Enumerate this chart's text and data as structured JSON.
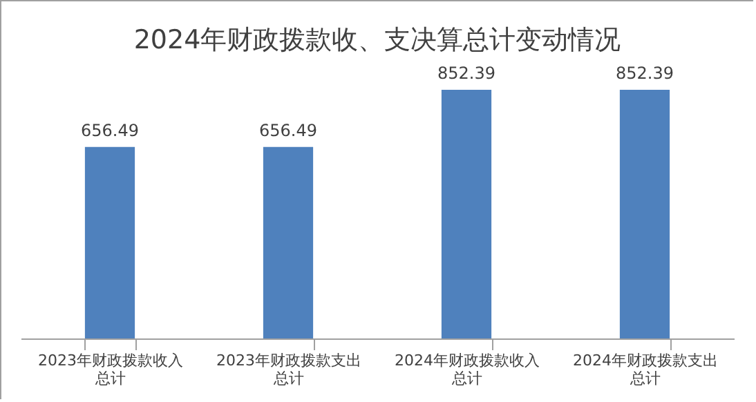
{
  "chart_data": {
    "type": "bar",
    "title": "2024年财政拨款收、支决算总计变动情况",
    "categories": [
      "2023年财政拨款收入总计",
      "2023年财政拨款支出总计",
      "2024年财政拨款收入总计",
      "2024年财政拨款支出总计"
    ],
    "values": [
      656.49,
      656.49,
      852.39,
      852.39
    ],
    "color": "#4f81bd",
    "data_labels": true
  }
}
